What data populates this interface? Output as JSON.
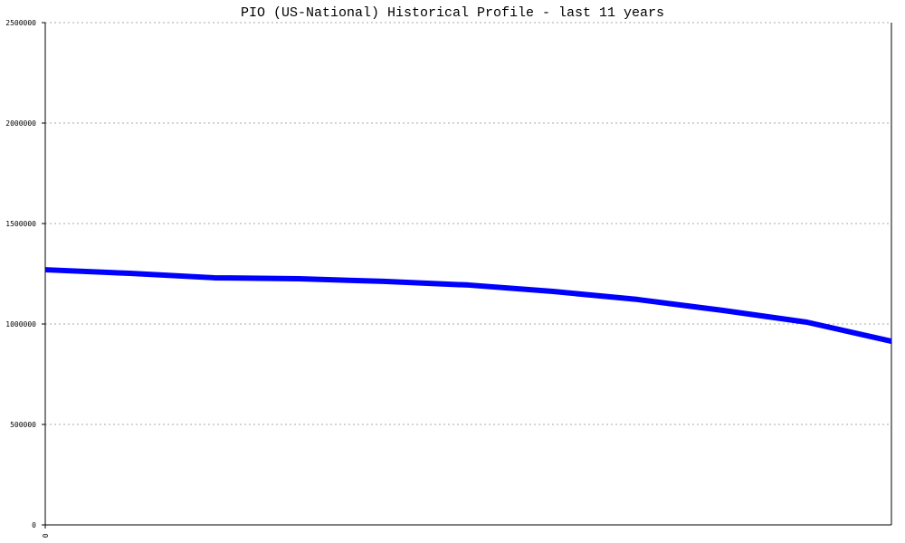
{
  "chart_data": {
    "type": "line",
    "title": "PIO (US-National) Historical Profile - last 11 years",
    "x": [
      0,
      1,
      2,
      3,
      4,
      5,
      6,
      7,
      8,
      9,
      10
    ],
    "series": [
      {
        "name": "PIO",
        "color": "#0000ff",
        "values": [
          1270000,
          1252000,
          1230000,
          1225000,
          1212000,
          1194000,
          1162000,
          1122000,
          1068000,
          1009000,
          914000
        ]
      }
    ],
    "xlim": [
      0,
      10
    ],
    "xticks": [
      0
    ],
    "ylim": [
      0,
      2500000
    ],
    "yticks": [
      0,
      500000,
      1000000,
      1500000,
      2000000,
      2500000
    ],
    "grid": true
  }
}
